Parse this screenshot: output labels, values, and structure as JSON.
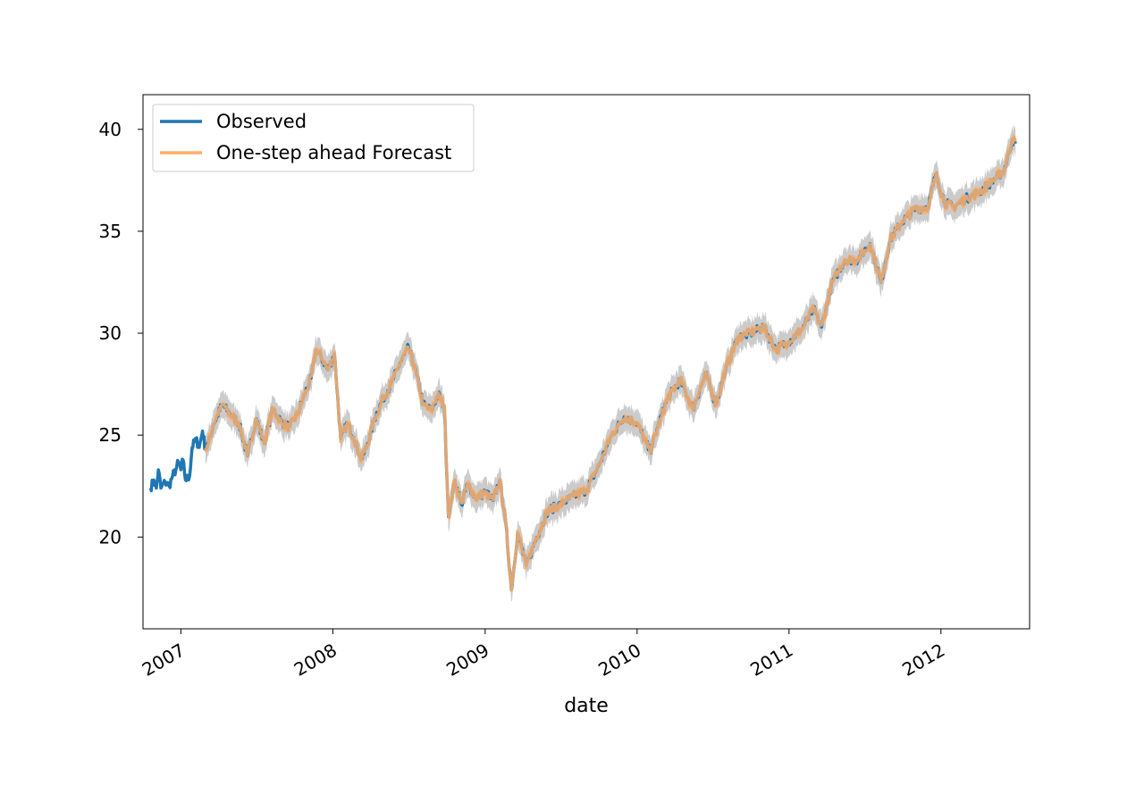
{
  "chart_data": {
    "type": "line",
    "title": "",
    "xlabel": "date",
    "ylabel": "",
    "x_range": [
      "2006-10-02",
      "2012-08-01"
    ],
    "ylim": [
      15.5,
      41.7
    ],
    "x_ticks": [
      "2007",
      "2008",
      "2009",
      "2010",
      "2011",
      "2012"
    ],
    "y_ticks": [
      20,
      25,
      30,
      35,
      40
    ],
    "grid": false,
    "legend_position": "top-left",
    "colors": {
      "observed": "#1f77b4",
      "forecast": "#ffae6a",
      "confidence_band": "#c8c8c8",
      "overlap": "#a67c52"
    },
    "series": [
      {
        "name": "Observed",
        "points": [
          [
            "2006-10-20",
            22.4
          ],
          [
            "2006-10-28",
            22.8
          ],
          [
            "2006-11-03",
            22.4
          ],
          [
            "2006-11-08",
            23.3
          ],
          [
            "2006-11-14",
            22.4
          ],
          [
            "2006-11-24",
            22.7
          ],
          [
            "2006-12-04",
            22.5
          ],
          [
            "2006-12-12",
            23.0
          ],
          [
            "2006-12-20",
            23.3
          ],
          [
            "2006-12-26",
            23.7
          ],
          [
            "2007-01-01",
            23.3
          ],
          [
            "2007-01-06",
            23.8
          ],
          [
            "2007-01-12",
            22.8
          ],
          [
            "2007-01-22",
            23.0
          ],
          [
            "2007-01-28",
            24.4
          ],
          [
            "2007-02-06",
            24.8
          ],
          [
            "2007-02-14",
            24.4
          ],
          [
            "2007-02-22",
            25.2
          ],
          [
            "2007-03-01",
            24.3
          ],
          [
            "2007-03-08",
            24.6
          ],
          [
            "2007-03-20",
            25.5
          ],
          [
            "2007-04-10",
            26.5
          ],
          [
            "2007-05-01",
            26.0
          ],
          [
            "2007-05-20",
            25.6
          ],
          [
            "2007-06-10",
            24.0
          ],
          [
            "2007-07-01",
            25.8
          ],
          [
            "2007-07-20",
            24.6
          ],
          [
            "2007-08-10",
            26.3
          ],
          [
            "2007-09-01",
            25.6
          ],
          [
            "2007-09-20",
            25.4
          ],
          [
            "2007-10-10",
            26.1
          ],
          [
            "2007-10-25",
            27.0
          ],
          [
            "2007-11-10",
            27.8
          ],
          [
            "2007-11-22",
            29.2
          ],
          [
            "2007-12-05",
            28.8
          ],
          [
            "2007-12-20",
            28.2
          ],
          [
            "2008-01-05",
            29.0
          ],
          [
            "2008-01-20",
            24.8
          ],
          [
            "2008-02-05",
            25.6
          ],
          [
            "2008-02-20",
            24.9
          ],
          [
            "2008-03-10",
            23.8
          ],
          [
            "2008-03-25",
            24.6
          ],
          [
            "2008-04-10",
            25.8
          ],
          [
            "2008-05-01",
            26.8
          ],
          [
            "2008-05-20",
            27.5
          ],
          [
            "2008-06-10",
            28.5
          ],
          [
            "2008-07-01",
            29.3
          ],
          [
            "2008-07-20",
            28.0
          ],
          [
            "2008-08-05",
            26.5
          ],
          [
            "2008-08-25",
            26.2
          ],
          [
            "2008-09-10",
            27.0
          ],
          [
            "2008-09-25",
            26.4
          ],
          [
            "2008-10-05",
            21.0
          ],
          [
            "2008-10-20",
            22.8
          ],
          [
            "2008-11-05",
            21.6
          ],
          [
            "2008-11-20",
            22.6
          ],
          [
            "2008-12-10",
            21.9
          ],
          [
            "2009-01-01",
            22.2
          ],
          [
            "2009-01-20",
            21.8
          ],
          [
            "2009-02-05",
            22.8
          ],
          [
            "2009-02-20",
            20.6
          ],
          [
            "2009-03-05",
            17.4
          ],
          [
            "2009-03-20",
            20.2
          ],
          [
            "2009-04-10",
            18.6
          ],
          [
            "2009-05-01",
            19.8
          ],
          [
            "2009-06-01",
            21.3
          ],
          [
            "2009-07-01",
            21.6
          ],
          [
            "2009-08-01",
            22.0
          ],
          [
            "2009-09-01",
            22.3
          ],
          [
            "2009-10-01",
            23.5
          ],
          [
            "2009-11-01",
            25.0
          ],
          [
            "2009-12-01",
            25.9
          ],
          [
            "2010-01-01",
            25.6
          ],
          [
            "2010-02-01",
            24.2
          ],
          [
            "2010-02-20",
            25.4
          ],
          [
            "2010-03-15",
            26.8
          ],
          [
            "2010-04-15",
            27.7
          ],
          [
            "2010-05-15",
            26.3
          ],
          [
            "2010-06-15",
            28.0
          ],
          [
            "2010-07-10",
            26.5
          ],
          [
            "2010-08-01",
            28.2
          ],
          [
            "2010-09-01",
            29.8
          ],
          [
            "2010-10-01",
            30.0
          ],
          [
            "2010-11-01",
            30.3
          ],
          [
            "2010-12-01",
            29.2
          ],
          [
            "2011-01-01",
            29.6
          ],
          [
            "2011-02-01",
            30.2
          ],
          [
            "2011-03-01",
            31.2
          ],
          [
            "2011-03-20",
            30.3
          ],
          [
            "2011-04-15",
            32.5
          ],
          [
            "2011-05-15",
            33.6
          ],
          [
            "2011-06-15",
            33.6
          ],
          [
            "2011-07-15",
            34.4
          ],
          [
            "2011-08-10",
            32.5
          ],
          [
            "2011-09-01",
            34.6
          ],
          [
            "2011-10-01",
            35.5
          ],
          [
            "2011-11-01",
            36.1
          ],
          [
            "2011-12-01",
            36.2
          ],
          [
            "2011-12-20",
            37.8
          ],
          [
            "2012-01-10",
            36.4
          ],
          [
            "2012-02-01",
            36.2
          ],
          [
            "2012-03-01",
            36.6
          ],
          [
            "2012-04-01",
            36.9
          ],
          [
            "2012-05-01",
            37.4
          ],
          [
            "2012-06-01",
            38.0
          ],
          [
            "2012-06-20",
            39.5
          ],
          [
            "2012-06-28",
            39.3
          ]
        ]
      },
      {
        "name": "One-step ahead Forecast",
        "start": "2007-03-01"
      }
    ]
  }
}
